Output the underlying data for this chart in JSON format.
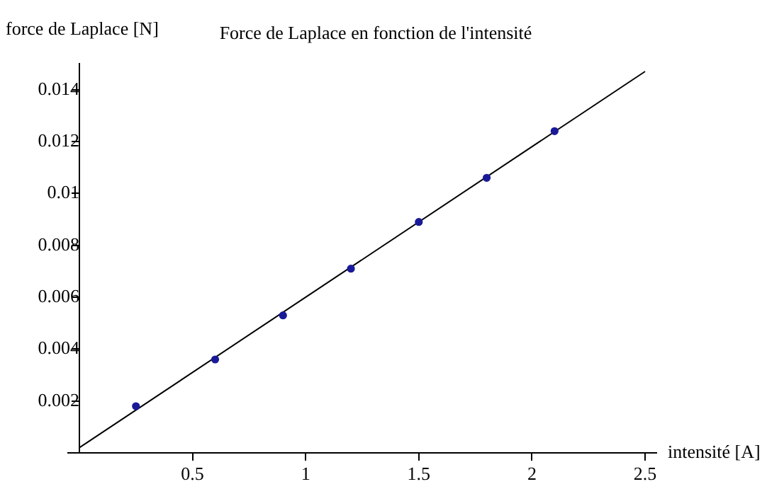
{
  "chart_data": {
    "type": "scatter",
    "title": "Force de Laplace en fonction de l'intensité",
    "xlabel": "intensité [A]",
    "ylabel": "force de Laplace [N]",
    "xlim": [
      -0.05,
      2.55
    ],
    "ylim": [
      0,
      0.015
    ],
    "xticks": [
      0.5,
      1,
      1.5,
      2,
      2.5
    ],
    "yticks": [
      0.002,
      0.004,
      0.006,
      0.008,
      0.01,
      0.012,
      0.014
    ],
    "grid": false,
    "legend": false,
    "series": [
      {
        "marker": "circle",
        "color": "#1a1a99",
        "x": [
          0.25,
          0.6,
          0.9,
          1.2,
          1.5,
          1.8,
          2.1
        ],
        "values": [
          0.0018,
          0.0036,
          0.0053,
          0.0071,
          0.0089,
          0.0106,
          0.0124
        ]
      },
      {
        "type": "line",
        "marker": "none",
        "color": "#000000",
        "x": [
          0,
          2.5
        ],
        "values": [
          0.0002,
          0.0147
        ]
      }
    ]
  }
}
